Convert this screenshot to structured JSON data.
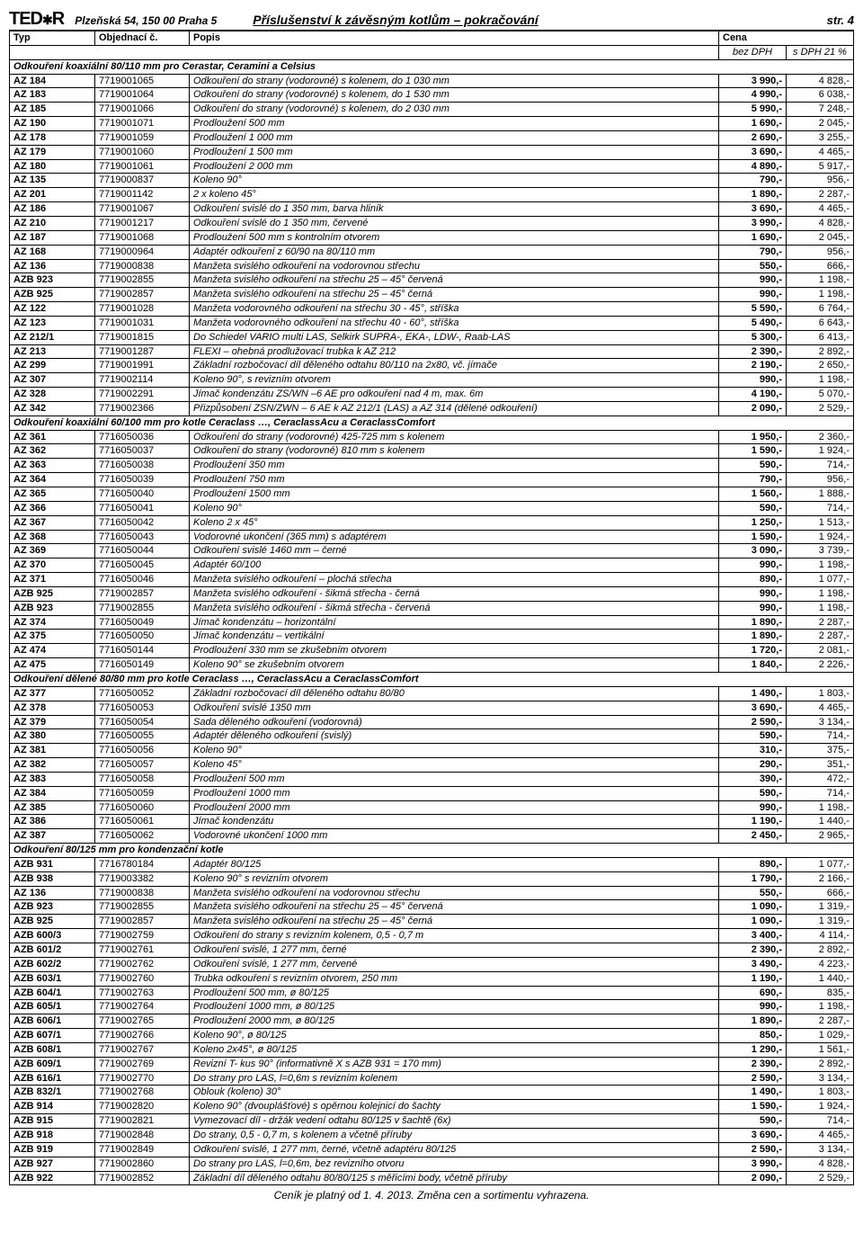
{
  "header": {
    "logo": "TED★R",
    "address": "Plzeňská 54, 150 00 Praha 5",
    "title": "Příslušenství k závěsným kotlům – pokračování",
    "page": "str. 4"
  },
  "columns": {
    "typ": "Typ",
    "obj": "Objednací č.",
    "popis": "Popis",
    "cena": "Cena",
    "cena_sub1": "bez DPH",
    "cena_sub2": "s DPH 21 %"
  },
  "footer": "Ceník je platný od 1. 4. 2013. Změna cen a sortimentu vyhrazena.",
  "sections": [
    {
      "title": "Odkouření koaxiální 80/110 mm pro Cerastar, Ceramini a Celsius",
      "rows": [
        [
          "AZ 184",
          "7719001065",
          "Odkouření do strany (vodorovné) s kolenem, do 1 030 mm",
          "3 990,-",
          "4 828,-"
        ],
        [
          "AZ 183",
          "7719001064",
          "Odkouření do strany (vodorovné) s kolenem, do 1 530 mm",
          "4 990,-",
          "6 038,-"
        ],
        [
          "AZ 185",
          "7719001066",
          "Odkouření do strany (vodorovné) s kolenem, do 2 030 mm",
          "5 990,-",
          "7 248,-"
        ],
        [
          "AZ 190",
          "7719001071",
          "Prodloužení 500 mm",
          "1 690,-",
          "2 045,-"
        ],
        [
          "AZ 178",
          "7719001059",
          "Prodloužení 1 000 mm",
          "2 690,-",
          "3 255,-"
        ],
        [
          "AZ 179",
          "7719001060",
          "Prodloužení 1 500 mm",
          "3 690,-",
          "4 465,-"
        ],
        [
          "AZ 180",
          "7719001061",
          "Prodloužení 2 000 mm",
          "4 890,-",
          "5 917,-"
        ],
        [
          "AZ 135",
          "7719000837",
          "Koleno 90°",
          "790,-",
          "956,-"
        ],
        [
          "AZ 201",
          "7719001142",
          "2 x koleno 45°",
          "1 890,-",
          "2 287,-"
        ],
        [
          "AZ 186",
          "7719001067",
          "Odkouření svislé do 1 350 mm, barva hliník",
          "3 690,-",
          "4 465,-"
        ],
        [
          "AZ 210",
          "7719001217",
          "Odkouření svislé do 1 350 mm, červené",
          "3 990,-",
          "4 828,-"
        ],
        [
          "AZ 187",
          "7719001068",
          "Prodloužení 500 mm s kontrolním otvorem",
          "1 690,-",
          "2 045,-"
        ],
        [
          "AZ 168",
          "7719000964",
          "Adaptér odkouření z 60/90 na 80/110 mm",
          "790,-",
          "956,-"
        ],
        [
          "AZ 136",
          "7719000838",
          "Manžeta svislého odkouření na vodorovnou střechu",
          "550,-",
          "666,-"
        ],
        [
          "AZB 923",
          "7719002855",
          "Manžeta svislého odkouření na střechu 25 – 45° červená",
          "990,-",
          "1 198,-"
        ],
        [
          "AZB 925",
          "7719002857",
          "Manžeta svislého odkouření na střechu 25 – 45° černá",
          "990,-",
          "1 198,-"
        ],
        [
          "AZ 122",
          "7719001028",
          "Manžeta vodorovného odkouření na střechu 30 - 45°, stříška",
          "5 590,-",
          "6 764,-"
        ],
        [
          "AZ 123",
          "7719001031",
          "Manžeta vodorovného odkouření na střechu 40 - 60°, stříška",
          "5 490,-",
          "6 643,-"
        ],
        [
          "AZ 212/1",
          "7719001815",
          "Do Schiedel VARIO multi LAS, Selkirk SUPRA-, EKA-, LDW-, Raab-LAS",
          "5 300,-",
          "6 413,-"
        ],
        [
          "AZ 213",
          "7719001287",
          "FLEXI – ohebná prodlužovací trubka k AZ 212",
          "2 390,-",
          "2 892,-"
        ],
        [
          "AZ 299",
          "7719001991",
          "Základní rozbočovací díl děleného odtahu 80/110 na 2x80, vč. jímače",
          "2 190,-",
          "2 650,-"
        ],
        [
          "AZ 307",
          "7719002114",
          "Koleno 90°, s revizním otvorem",
          "990,-",
          "1 198,-"
        ],
        [
          "AZ 328",
          "7719002291",
          "Jímač kondenzátu ZS/WN –6 AE pro odkouření nad 4 m, max. 6m",
          "4 190,-",
          "5 070,-"
        ],
        [
          "AZ 342",
          "7719002366",
          "Přizpůsobení ZSN/ZWN – 6 AE k AZ 212/1 (LAS) a AZ 314 (dělené odkouření)",
          "2 090,-",
          "2 529,-"
        ]
      ]
    },
    {
      "title": "Odkouření koaxiální 60/100 mm  pro kotle Ceraclass …, CeraclassAcu a CeraclassComfort",
      "rows": [
        [
          "AZ 361",
          "7716050036",
          "Odkouření do strany (vodorovné) 425-725 mm s kolenem",
          "1 950,-",
          "2 360,-"
        ],
        [
          "AZ 362",
          "7716050037",
          "Odkouření do strany (vodorovné) 810 mm s kolenem",
          "1 590,-",
          "1 924,-"
        ],
        [
          "AZ 363",
          "7716050038",
          "Prodloužení 350 mm",
          "590,-",
          "714,-"
        ],
        [
          "AZ 364",
          "7716050039",
          "Prodloužení 750 mm",
          "790,-",
          "956,-"
        ],
        [
          "AZ 365",
          "7716050040",
          "Prodloužení 1500 mm",
          "1 560,-",
          "1 888,-"
        ],
        [
          "AZ 366",
          "7716050041",
          "Koleno 90°",
          "590,-",
          "714,-"
        ],
        [
          "AZ 367",
          "7716050042",
          "Koleno 2 x 45°",
          "1 250,-",
          "1 513,-"
        ],
        [
          "AZ 368",
          "7716050043",
          "Vodorovné ukončení (365 mm) s adaptérem",
          "1 590,-",
          "1 924,-"
        ],
        [
          "AZ 369",
          "7716050044",
          "Odkouření svislé 1460 mm – černé",
          "3 090,-",
          "3 739,-"
        ],
        [
          "AZ 370",
          "7716050045",
          "Adaptér 60/100",
          "990,-",
          "1 198,-"
        ],
        [
          "AZ 371",
          "7716050046",
          "Manžeta svislého odkouření – plochá střecha",
          "890,-",
          "1 077,-"
        ],
        [
          "AZB 925",
          "7719002857",
          "Manžeta svislého odkouření - šikmá střecha - černá",
          "990,-",
          "1 198,-"
        ],
        [
          "AZB 923",
          "7719002855",
          "Manžeta svislého odkouření - šikmá střecha - červená",
          "990,-",
          "1 198,-"
        ],
        [
          "AZ 374",
          "7716050049",
          "Jímač kondenzátu – horizontální",
          "1 890,-",
          "2 287,-"
        ],
        [
          "AZ 375",
          "7716050050",
          "Jímač kondenzátu – vertikální",
          "1 890,-",
          "2 287,-"
        ],
        [
          "AZ 474",
          "7716050144",
          "Prodloužení 330 mm se zkušebním otvorem",
          "1 720,-",
          "2 081,-"
        ],
        [
          "AZ 475",
          "7716050149",
          "Koleno 90° se zkušebním otvorem",
          "1 840,-",
          "2 226,-"
        ]
      ]
    },
    {
      "title": "Odkouření dělené 80/80 mm pro kotle Ceraclass …, CeraclassAcu a CeraclassComfort",
      "rows": [
        [
          "AZ 377",
          "7716050052",
          "Základní rozbočovací díl děleného odtahu 80/80",
          "1 490,-",
          "1 803,-"
        ],
        [
          "AZ 378",
          "7716050053",
          "Odkouření svislé 1350 mm",
          "3 690,-",
          "4 465,-"
        ],
        [
          "AZ 379",
          "7716050054",
          "Sada děleného odkouření (vodorovná)",
          "2 590,-",
          "3 134,-"
        ],
        [
          "AZ 380",
          "7716050055",
          "Adaptér děleného odkouření (svislý)",
          "590,-",
          "714,-"
        ],
        [
          "AZ 381",
          "7716050056",
          "Koleno 90°",
          "310,-",
          "375,-"
        ],
        [
          "AZ 382",
          "7716050057",
          "Koleno 45°",
          "290,-",
          "351,-"
        ],
        [
          "AZ 383",
          "7716050058",
          "Prodloužení 500 mm",
          "390,-",
          "472,-"
        ],
        [
          "AZ 384",
          "7716050059",
          "Prodloužení 1000 mm",
          "590,-",
          "714,-"
        ],
        [
          "AZ 385",
          "7716050060",
          "Prodloužení 2000 mm",
          "990,-",
          "1 198,-"
        ],
        [
          "AZ 386",
          "7716050061",
          "Jímač kondenzátu",
          "1 190,-",
          "1 440,-"
        ],
        [
          "AZ 387",
          "7716050062",
          "Vodorovné ukončení 1000 mm",
          "2 450,-",
          "2 965,-"
        ]
      ]
    },
    {
      "title": "Odkouření 80/125 mm pro kondenzační kotle",
      "rows": [
        [
          "AZB 931",
          "7716780184",
          "Adaptér 80/125",
          "890,-",
          "1 077,-"
        ],
        [
          "AZB 938",
          "7719003382",
          "Koleno 90° s revizním otvorem",
          "1 790,-",
          "2 166,-"
        ],
        [
          "AZ 136",
          "7719000838",
          "Manžeta svislého odkouření na vodorovnou střechu",
          "550,-",
          "666,-"
        ],
        [
          "AZB 923",
          "7719002855",
          "Manžeta svislého odkouření na střechu 25 – 45° červená",
          "1 090,-",
          "1 319,-"
        ],
        [
          "AZB 925",
          "7719002857",
          "Manžeta svislého odkouření na střechu 25 – 45° černá",
          "1 090,-",
          "1 319,-"
        ],
        [
          "AZB 600/3",
          "7719002759",
          "Odkouření do strany s revizním kolenem, 0,5 - 0,7 m",
          "3 400,-",
          "4 114,-"
        ],
        [
          "AZB 601/2",
          "7719002761",
          "Odkouření svislé, 1 277 mm, černé",
          "2 390,-",
          "2 892,-"
        ],
        [
          "AZB 602/2",
          "7719002762",
          "Odkouření svislé, 1 277 mm, červené",
          "3 490,-",
          "4 223,-"
        ],
        [
          "AZB 603/1",
          "7719002760",
          "Trubka odkouření s revizním otvorem, 250 mm",
          "1 190,-",
          "1 440,-"
        ],
        [
          "AZB 604/1",
          "7719002763",
          "Prodloužení 500 mm, ø 80/125",
          "690,-",
          "835,-"
        ],
        [
          "AZB 605/1",
          "7719002764",
          "Prodloužení 1000 mm, ø 80/125",
          "990,-",
          "1 198,-"
        ],
        [
          "AZB 606/1",
          "7719002765",
          "Prodloužení 2000 mm, ø 80/125",
          "1 890,-",
          "2 287,-"
        ],
        [
          "AZB 607/1",
          "7719002766",
          "Koleno 90°, ø 80/125",
          "850,-",
          "1 029,-"
        ],
        [
          "AZB 608/1",
          "7719002767",
          "Koleno 2x45°, ø 80/125",
          "1 290,-",
          "1 561,-"
        ],
        [
          "AZB 609/1",
          "7719002769",
          "Revizní T- kus 90° (informativně X s AZB 931 = 170 mm)",
          "2 390,-",
          "2 892,-"
        ],
        [
          "AZB 616/1",
          "7719002770",
          "Do strany pro LAS, l=0,6m s revizním kolenem",
          "2 590,-",
          "3 134,-"
        ],
        [
          "AZB 832/1",
          "7719002768",
          "Oblouk (koleno) 30°",
          "1 490,-",
          "1 803,-"
        ],
        [
          "AZB 914",
          "7719002820",
          "Koleno 90° (dvouplášťové) s opěrnou kolejnicí do šachty",
          "1 590,-",
          "1 924,-"
        ],
        [
          "AZB 915",
          "7719002821",
          "Vymezovací díl - držák vedení odtahu 80/125 v šachtě (6x)",
          "590,-",
          "714,-"
        ],
        [
          "AZB 918",
          "7719002848",
          "Do strany, 0,5 - 0,7 m, s kolenem a včetně příruby",
          "3 690,-",
          "4 465,-"
        ],
        [
          "AZB 919",
          "7719002849",
          "Odkouření svislé, 1 277 mm, černé, včetně adaptéru 80/125",
          "2 590,-",
          "3 134,-"
        ],
        [
          "AZB 927",
          "7719002860",
          "Do strany pro LAS, l=0,6m, bez revizního otvoru",
          "3 990,-",
          "4 828,-"
        ],
        [
          "AZB 922",
          "7719002852",
          "Základní díl děleného odtahu 80/80/125 s měřicími body, včetně příruby",
          "2 090,-",
          "2 529,-"
        ]
      ]
    }
  ]
}
